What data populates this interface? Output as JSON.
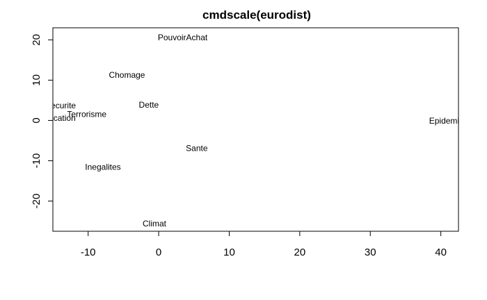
{
  "chart_data": {
    "type": "scatter",
    "title": "cmdscale(eurodist)",
    "xlabel": "",
    "ylabel": "",
    "xlim": [
      -15,
      42.5
    ],
    "ylim": [
      -27.5,
      23
    ],
    "xticks": [
      -10,
      0,
      10,
      20,
      30,
      40
    ],
    "xtick_labels": [
      "-10",
      "0",
      "10",
      "20",
      "30",
      "40"
    ],
    "yticks": [
      -20,
      -10,
      0,
      10,
      20
    ],
    "ytick_labels": [
      "-20",
      "-10",
      "0",
      "10",
      "20"
    ],
    "grid": false,
    "legend": "none",
    "points": [
      {
        "label": "PouvoirAchat",
        "x": 3.4,
        "y": 20.6
      },
      {
        "label": "Chomage",
        "x": -4.5,
        "y": 11.3
      },
      {
        "label": "Insecurite",
        "x": -14.3,
        "y": 3.7
      },
      {
        "label": "Dette",
        "x": -1.4,
        "y": 3.9
      },
      {
        "label": "Terrorisme",
        "x": -10.2,
        "y": 1.5
      },
      {
        "label": "Education",
        "x": -14.4,
        "y": 0.6
      },
      {
        "label": "Epidemie",
        "x": 40.8,
        "y": -0.1
      },
      {
        "label": "Sante",
        "x": 5.4,
        "y": -6.9
      },
      {
        "label": "Inegalites",
        "x": -7.9,
        "y": -11.6
      },
      {
        "label": "Climat",
        "x": -0.6,
        "y": -25.6
      }
    ]
  }
}
